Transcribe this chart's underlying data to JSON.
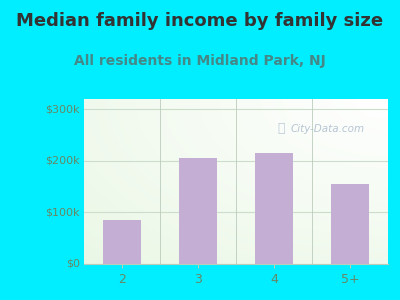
{
  "title": "Median family income by family size",
  "subtitle": "All residents in Midland Park, NJ",
  "categories": [
    "2",
    "3",
    "4",
    "5+"
  ],
  "values": [
    85000,
    205000,
    215000,
    155000
  ],
  "bar_color": "#c4aed4",
  "background_color": "#00eeff",
  "yticks": [
    0,
    100000,
    200000,
    300000
  ],
  "ytick_labels": [
    "$0",
    "$100k",
    "$200k",
    "$300k"
  ],
  "ylim": [
    0,
    320000
  ],
  "title_fontsize": 13,
  "subtitle_fontsize": 10,
  "title_color": "#333333",
  "subtitle_color": "#448888",
  "tick_color": "#668866",
  "watermark": "City-Data.com",
  "watermark_color": "#aabbcc",
  "grid_color": "#ccddcc",
  "separator_color": "#bbccbb"
}
